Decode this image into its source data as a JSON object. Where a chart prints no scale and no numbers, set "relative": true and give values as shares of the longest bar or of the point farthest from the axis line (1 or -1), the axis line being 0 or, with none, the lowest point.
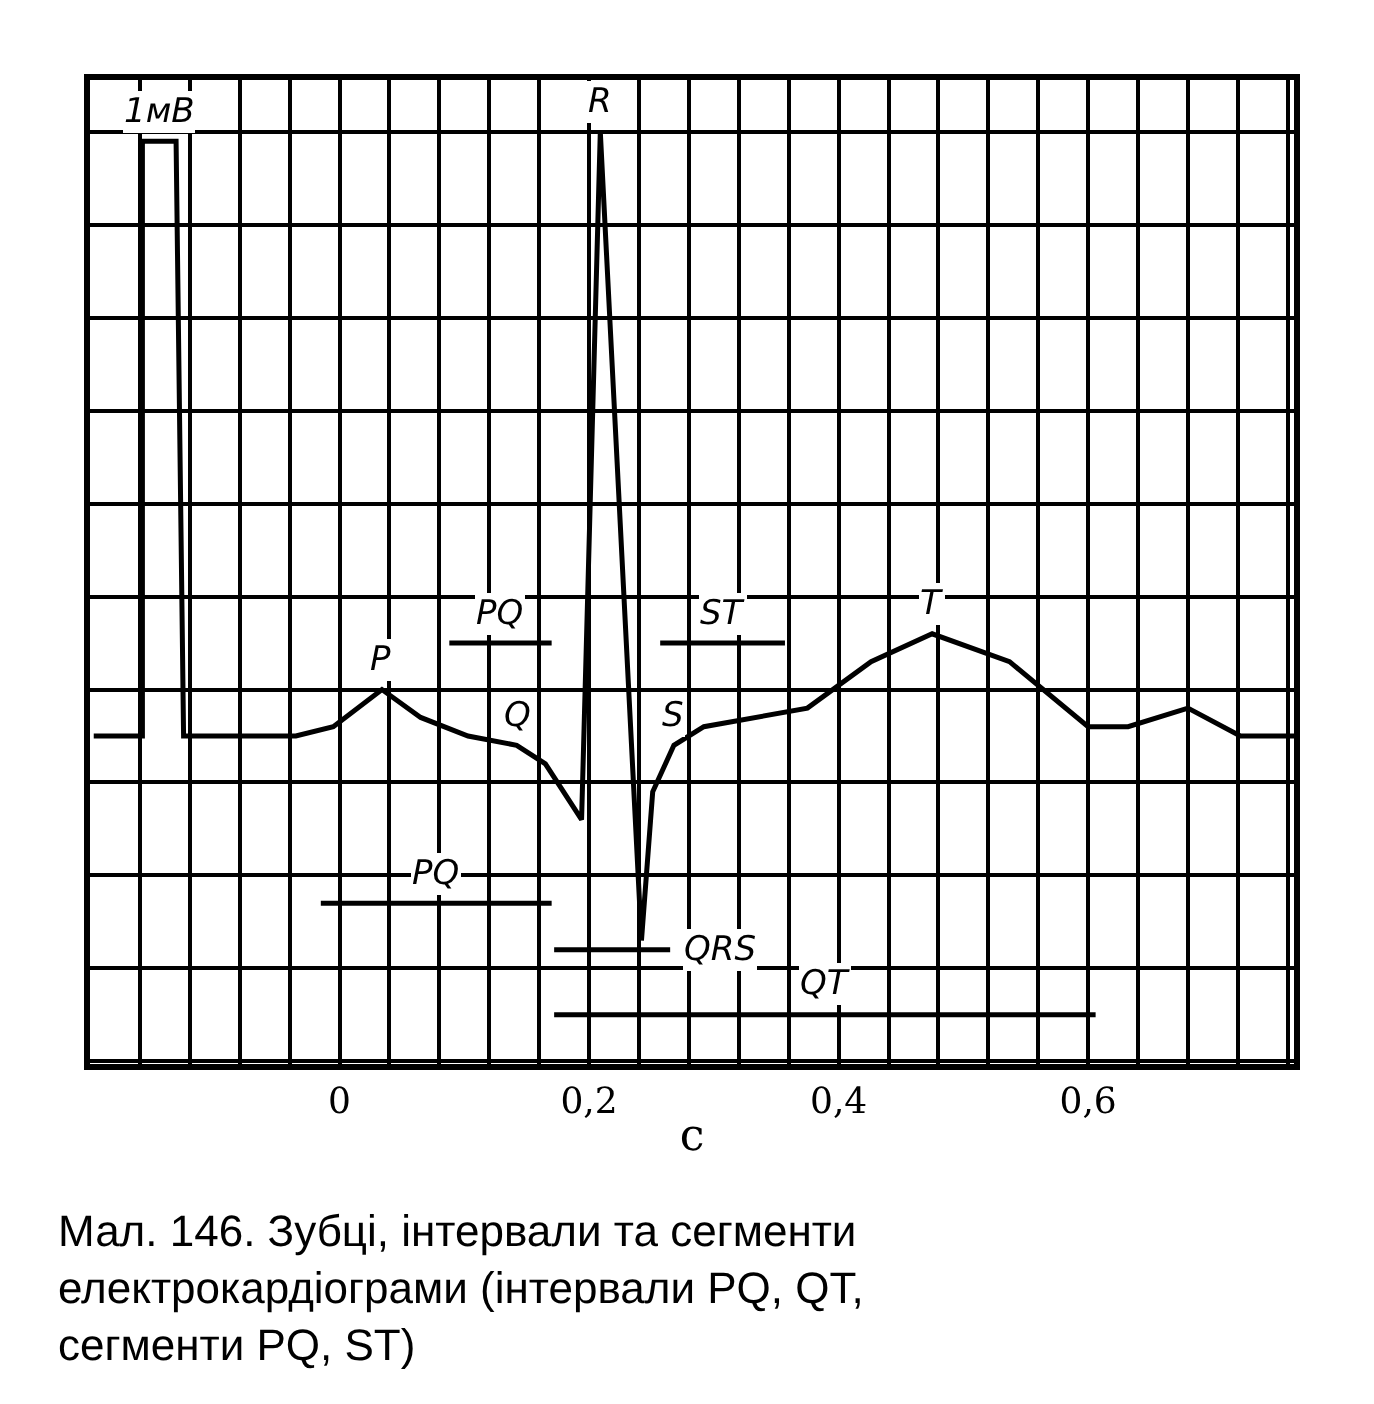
{
  "chart_data": {
    "type": "line",
    "relative": true,
    "xlabel": "c",
    "x": [
      -0.197,
      -0.158,
      -0.158,
      -0.131,
      -0.125,
      -0.035,
      -0.005,
      0.034,
      0.065,
      0.103,
      0.142,
      0.165,
      0.194,
      0.209,
      0.242,
      0.251,
      0.268,
      0.292,
      0.375,
      0.426,
      0.475,
      0.537,
      0.6,
      0.632,
      0.68,
      0.722,
      0.765
    ],
    "series": [
      {
        "color": "#000000",
        "values": [
          0.35,
          0.35,
          0.99,
          0.99,
          0.35,
          0.35,
          0.36,
          0.4,
          0.37,
          0.35,
          0.34,
          0.32,
          0.26,
          1,
          0.13,
          0.29,
          0.34,
          0.36,
          0.38,
          0.43,
          0.46,
          0.43,
          0.36,
          0.36,
          0.38,
          0.35,
          0.35
        ]
      },
      {
        "color": "#000000",
        "x": [
          0.088,
          0.17
        ],
        "values": [
          0.45,
          0.45
        ]
      },
      {
        "color": "#000000",
        "x": [
          0.257,
          0.357
        ],
        "values": [
          0.45,
          0.45
        ]
      },
      {
        "color": "#000000",
        "x": [
          -0.015,
          0.17
        ],
        "values": [
          0.17,
          0.17
        ]
      },
      {
        "color": "#000000",
        "x": [
          0.172,
          0.265
        ],
        "values": [
          0.12,
          0.12
        ]
      },
      {
        "color": "#000000",
        "x": [
          0.172,
          0.606
        ],
        "values": [
          0.05,
          0.05
        ]
      }
    ],
    "xlim": [
      -0.2,
      0.765
    ],
    "xticks": [
      {
        "value": -0.2,
        "label": null
      },
      {
        "value": -0.16,
        "label": null
      },
      {
        "value": -0.12,
        "label": null
      },
      {
        "value": -0.08,
        "label": null
      },
      {
        "value": -0.04,
        "label": null
      },
      0,
      {
        "value": 0.04,
        "label": null
      },
      {
        "value": 0.08,
        "label": null
      },
      {
        "value": 0.12,
        "label": null
      },
      {
        "value": 0.16,
        "label": null
      },
      {
        "value": 0.2,
        "label": "0,2"
      },
      {
        "value": 0.24,
        "label": null
      },
      {
        "value": 0.28,
        "label": null
      },
      {
        "value": 0.32,
        "label": null
      },
      {
        "value": 0.36,
        "label": null
      },
      {
        "value": 0.4,
        "label": "0,4"
      },
      {
        "value": 0.44,
        "label": null
      },
      {
        "value": 0.48,
        "label": null
      },
      {
        "value": 0.52,
        "label": null
      },
      {
        "value": 0.56,
        "label": null
      },
      {
        "value": 0.6,
        "label": "0,6"
      },
      {
        "value": 0.64,
        "label": null
      },
      {
        "value": 0.68,
        "label": null
      },
      {
        "value": 0.72,
        "label": null
      },
      {
        "value": 0.76,
        "label": null
      }
    ],
    "tick_labels": "x",
    "grid": true,
    "marker": "none",
    "line_style": "solid",
    "annotations": [
      {
        "text": "1мВ",
        "x": -0.145,
        "y": 0.99
      },
      {
        "text": "R",
        "x": 0.209,
        "y": 1
      },
      {
        "text": "P",
        "x": 0.034,
        "y": 0.4
      },
      {
        "text": "PQ",
        "x": 0.129,
        "y": 0.45
      },
      {
        "text": "ST",
        "x": 0.307,
        "y": 0.45
      },
      {
        "text": "T",
        "x": 0.475,
        "y": 0.46
      },
      {
        "text": "Q",
        "x": 0.142,
        "y": 0.34
      },
      {
        "text": "S",
        "x": 0.268,
        "y": 0.34
      },
      {
        "text": "PQ",
        "x": 0.0775,
        "y": 0.17
      },
      {
        "text": "QRS",
        "x": 0.265,
        "y": 0.12
      },
      {
        "text": "QT",
        "x": 0.389,
        "y": 0.05
      },
      "Мал. 146. Зубці, інтервали та сегменти електрокардіограми (інтервали PQ, QT, сегменти PQ, ST)"
    ]
  }
}
